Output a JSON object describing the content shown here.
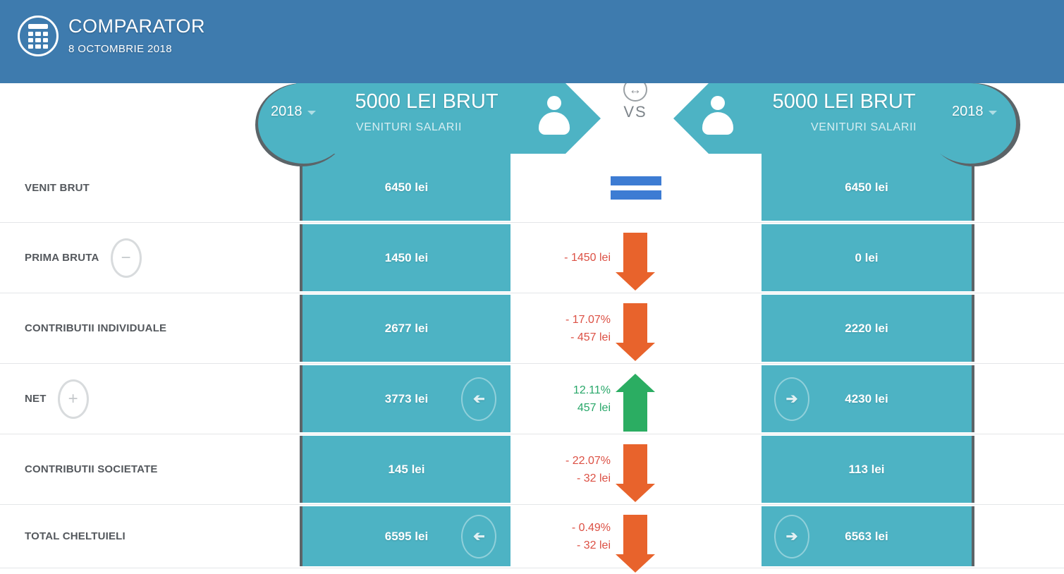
{
  "topbar": {
    "title": "COMPARATOR",
    "date": "8 OCTOMBRIE 2018"
  },
  "comparator": {
    "vs": "VS",
    "left": {
      "year": "2018",
      "amount": "5000 LEI BRUT",
      "category": "VENITURI SALARII"
    },
    "right": {
      "year": "2018",
      "amount": "5000 LEI BRUT",
      "category": "VENITURI SALARII"
    }
  },
  "icons": {
    "logo": "calculator-icon",
    "swap": "swap-horizontal-icon",
    "swap_glyph": "↔",
    "person": "person-icon",
    "year_caret": "chevron-down-icon",
    "minus_glyph": "−",
    "plus_glyph": "+",
    "nav_glyph": "➔",
    "equal": "equals-icon",
    "down": "arrow-down-icon",
    "up": "arrow-up-icon"
  },
  "rows": [
    {
      "label": "VENIT BRUT",
      "label_button": null,
      "left": {
        "value": "6450 lei",
        "nav": false
      },
      "right": {
        "value": "6450 lei",
        "nav": false
      },
      "change": {
        "type": "equal",
        "lines": []
      }
    },
    {
      "label": "PRIMA BRUTA",
      "label_button": "minus",
      "left": {
        "value": "1450 lei",
        "nav": false
      },
      "right": {
        "value": "0 lei",
        "nav": false
      },
      "change": {
        "type": "down",
        "lines": [
          "- 1450 lei"
        ]
      }
    },
    {
      "label": "CONTRIBUTII INDIVIDUALE",
      "label_button": null,
      "left": {
        "value": "2677 lei",
        "nav": false
      },
      "right": {
        "value": "2220 lei",
        "nav": false
      },
      "change": {
        "type": "down",
        "lines": [
          "- 17.07%",
          "- 457 lei"
        ]
      }
    },
    {
      "label": "NET",
      "label_button": "plus",
      "left": {
        "value": "3773 lei",
        "nav": true
      },
      "right": {
        "value": "4230 lei",
        "nav": true
      },
      "change": {
        "type": "up",
        "lines": [
          "12.11%",
          "457 lei"
        ]
      }
    },
    {
      "label": "CONTRIBUTII SOCIETATE",
      "label_button": null,
      "left": {
        "value": "145 lei",
        "nav": false
      },
      "right": {
        "value": "113 lei",
        "nav": false
      },
      "change": {
        "type": "down",
        "lines": [
          "- 22.07%",
          "- 32 lei"
        ]
      }
    },
    {
      "label": "TOTAL CHELTUIELI",
      "label_button": null,
      "left": {
        "value": "6595 lei",
        "nav": true
      },
      "right": {
        "value": "6563 lei",
        "nav": true
      },
      "change": {
        "type": "down",
        "lines": [
          "- 0.49%",
          "- 32 lei"
        ]
      }
    }
  ],
  "colors": {
    "topbar_bg": "#3e7bae",
    "teal": "#4db3c4",
    "cell_border": "#5c6468",
    "arrow_orange": "#e8632c",
    "text_orange": "#dc5044",
    "arrow_green": "#2bad62",
    "text_green": "#28a769",
    "equals_blue": "#3d7cd3",
    "divider": "#e4e6e8",
    "label_text": "#54585d"
  }
}
